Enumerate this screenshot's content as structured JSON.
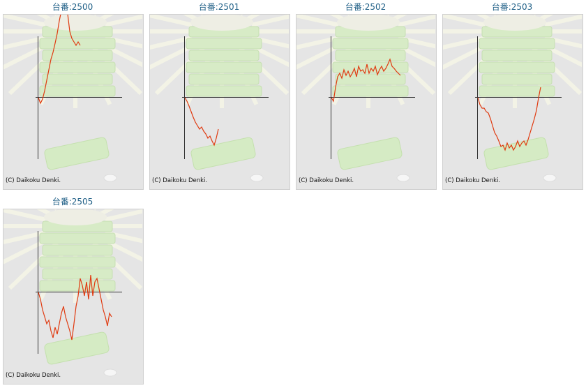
{
  "items": [
    {
      "title": "台番:2500",
      "copyright": "(C) Daikoku Denki.",
      "values": [
        0,
        -8,
        -2,
        10,
        25,
        40,
        55,
        65,
        78,
        92,
        110,
        125,
        135,
        130,
        120,
        95,
        85,
        80,
        75,
        80,
        75
      ]
    },
    {
      "title": "台番:2501",
      "copyright": "(C) Daikoku Denki.",
      "values": [
        0,
        -5,
        -12,
        -20,
        -28,
        -35,
        -40,
        -45,
        -42,
        -48,
        -52,
        -58,
        -55,
        -62,
        -68,
        -58,
        -45
      ]
    },
    {
      "title": "台番:2502",
      "copyright": "(C) Daikoku Denki.",
      "values": [
        0,
        -5,
        15,
        30,
        35,
        28,
        40,
        32,
        38,
        30,
        35,
        42,
        30,
        45,
        38,
        40,
        35,
        48,
        35,
        42,
        38,
        45,
        33,
        40,
        45,
        38,
        42,
        48,
        55,
        45,
        42,
        38,
        35,
        32
      ]
    },
    {
      "title": "台番:2503",
      "copyright": "(C) Daikoku Denki.",
      "values": [
        0,
        -10,
        -15,
        -15,
        -20,
        -22,
        -30,
        -40,
        -50,
        -55,
        -62,
        -70,
        -68,
        -75,
        -65,
        -72,
        -68,
        -75,
        -70,
        -62,
        -70,
        -65,
        -62,
        -68,
        -60,
        -50,
        -40,
        -30,
        -18,
        0,
        15
      ]
    },
    {
      "title": "台番:2505",
      "copyright": "(C) Daikoku Denki.",
      "values": [
        0,
        -10,
        -25,
        -35,
        -45,
        -40,
        -55,
        -65,
        -50,
        -60,
        -45,
        -30,
        -20,
        -35,
        -45,
        -55,
        -68,
        -45,
        -20,
        -5,
        20,
        10,
        -5,
        15,
        -10,
        25,
        -5,
        15,
        20,
        5,
        -10,
        -25,
        -35,
        -48,
        -30,
        -35
      ]
    }
  ]
}
